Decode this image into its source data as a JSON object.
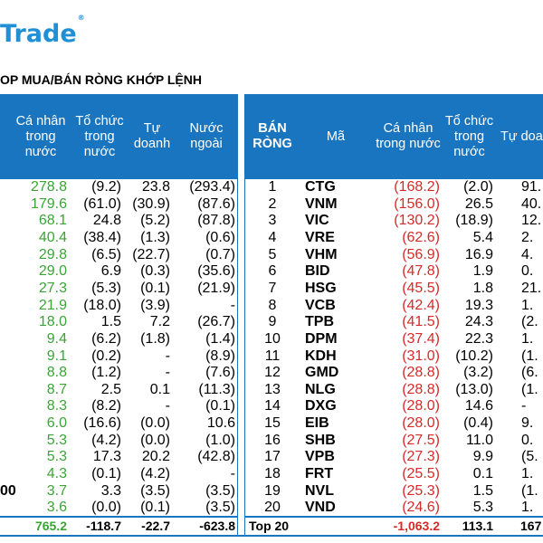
{
  "logo": {
    "text": "Trade",
    "mark": "®"
  },
  "title": "OP MUA/BÁN RÒNG KHỚP LỆNH",
  "left": {
    "headers": [
      "Cá nhân trong nước",
      "Tổ chức trong nước",
      "Tự doanh",
      "Nước ngoài"
    ],
    "rows": [
      [
        "278.8",
        "(9.2)",
        "23.8",
        "(293.4)"
      ],
      [
        "179.6",
        "(61.0)",
        "(30.9)",
        "(87.6)"
      ],
      [
        "68.1",
        "24.8",
        "(5.2)",
        "(87.8)"
      ],
      [
        "40.4",
        "(38.4)",
        "(1.3)",
        "(0.6)"
      ],
      [
        "29.8",
        "(6.5)",
        "(22.7)",
        "(0.7)"
      ],
      [
        "29.0",
        "6.9",
        "(0.3)",
        "(35.6)"
      ],
      [
        "27.3",
        "(5.3)",
        "(0.1)",
        "(21.9)"
      ],
      [
        "21.9",
        "(18.0)",
        "(3.9)",
        "-"
      ],
      [
        "18.0",
        "1.5",
        "7.2",
        "(26.7)"
      ],
      [
        "9.4",
        "(6.2)",
        "(1.8)",
        "(1.4)"
      ],
      [
        "9.1",
        "(0.2)",
        "-",
        "(8.9)"
      ],
      [
        "8.8",
        "(1.2)",
        "-",
        "(7.6)"
      ],
      [
        "8.7",
        "2.5",
        "0.1",
        "(11.3)"
      ],
      [
        "8.3",
        "(8.2)",
        "-",
        "(0.1)"
      ],
      [
        "6.0",
        "(16.6)",
        "(0.0)",
        "10.6"
      ],
      [
        "5.3",
        "(4.2)",
        "(0.0)",
        "(1.0)"
      ],
      [
        "5.3",
        "17.3",
        "20.2",
        "(42.8)"
      ],
      [
        "4.3",
        "(0.1)",
        "(4.2)",
        "-"
      ],
      [
        "3.7",
        "3.3",
        "(3.5)",
        "(3.5)"
      ],
      [
        "3.6",
        "(0.0)",
        "(0.1)",
        "(3.5)"
      ]
    ],
    "row19_prefix": "00",
    "total": [
      "765.2",
      "-118.7",
      "-22.7",
      "-623.8"
    ]
  },
  "right": {
    "headers": [
      "BÁN RÒNG",
      "Mã",
      "Cá nhân trong nước",
      "Tổ chức trong nước",
      "Tự doanh"
    ],
    "rows": [
      [
        "1",
        "CTG",
        "(168.2)",
        "(2.0)",
        "91."
      ],
      [
        "2",
        "VNM",
        "(156.0)",
        "26.5",
        "40."
      ],
      [
        "3",
        "VIC",
        "(130.2)",
        "(18.9)",
        "12."
      ],
      [
        "4",
        "VRE",
        "(62.6)",
        "5.4",
        "2."
      ],
      [
        "5",
        "VHM",
        "(56.9)",
        "16.9",
        "4."
      ],
      [
        "6",
        "BID",
        "(47.8)",
        "1.9",
        "0."
      ],
      [
        "7",
        "HSG",
        "(45.5)",
        "1.8",
        "21."
      ],
      [
        "8",
        "VCB",
        "(42.4)",
        "19.3",
        "1."
      ],
      [
        "9",
        "TPB",
        "(41.5)",
        "24.3",
        "(2."
      ],
      [
        "10",
        "DPM",
        "(37.4)",
        "22.3",
        "1."
      ],
      [
        "11",
        "KDH",
        "(31.0)",
        "(10.2)",
        "(1."
      ],
      [
        "12",
        "GMD",
        "(28.8)",
        "(3.2)",
        "(6."
      ],
      [
        "13",
        "NLG",
        "(28.8)",
        "(13.0)",
        "(1."
      ],
      [
        "14",
        "DXG",
        "(28.0)",
        "14.6",
        "-"
      ],
      [
        "15",
        "EIB",
        "(28.0)",
        "(0.4)",
        "9."
      ],
      [
        "16",
        "SHB",
        "(27.5)",
        "11.0",
        "0."
      ],
      [
        "17",
        "VPB",
        "(27.3)",
        "9.9",
        "(5."
      ],
      [
        "18",
        "FRT",
        "(25.5)",
        "0.1",
        "1."
      ],
      [
        "19",
        "NVL",
        "(25.3)",
        "1.5",
        "(1."
      ],
      [
        "20",
        "VND",
        "(24.6)",
        "5.3",
        "1."
      ]
    ],
    "total": [
      "Top 20",
      "-1,063.2",
      "113.1",
      "167"
    ]
  },
  "colors": {
    "header": "#1a75c0",
    "positive": "#3aa535",
    "negative": "#d62a2a",
    "logo": "#1f8fd6"
  }
}
